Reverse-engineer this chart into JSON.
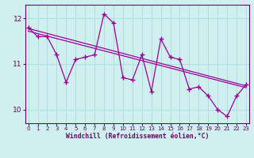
{
  "title": "",
  "xlabel": "Windchill (Refroidissement éolien,°C)",
  "bg_color": "#d0f0f0",
  "line_color": "#990099",
  "grid_color": "#b0dede",
  "axis_color": "#660066",
  "x_data": [
    0,
    1,
    2,
    3,
    4,
    5,
    6,
    7,
    8,
    9,
    10,
    11,
    12,
    13,
    14,
    15,
    16,
    17,
    18,
    19,
    20,
    21,
    22,
    23
  ],
  "y_main": [
    11.8,
    11.6,
    11.6,
    11.2,
    10.6,
    11.1,
    11.15,
    11.2,
    12.1,
    11.9,
    10.7,
    10.65,
    11.2,
    10.4,
    11.55,
    11.15,
    11.1,
    10.45,
    10.5,
    10.3,
    10.0,
    9.85,
    10.3,
    10.55
  ],
  "y_reg1_start": 11.78,
  "y_reg1_end": 10.52,
  "y_reg2_start": 11.72,
  "y_reg2_end": 10.48,
  "ylim": [
    9.7,
    12.3
  ],
  "xlim": [
    -0.3,
    23.3
  ],
  "yticks": [
    10,
    11,
    12
  ],
  "xticks": [
    0,
    1,
    2,
    3,
    4,
    5,
    6,
    7,
    8,
    9,
    10,
    11,
    12,
    13,
    14,
    15,
    16,
    17,
    18,
    19,
    20,
    21,
    22,
    23
  ],
  "marker": "+",
  "linewidth": 0.9,
  "markersize": 4
}
